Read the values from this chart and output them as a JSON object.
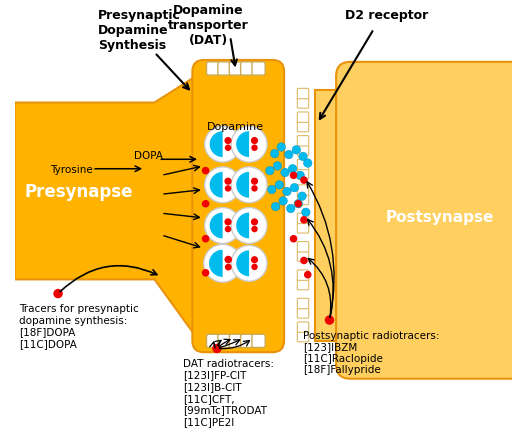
{
  "bg_color": "#ffffff",
  "orange_fill": "#FFB300",
  "orange_light": "#FFD060",
  "orange_edge": "#E8930A",
  "presynapse_label": "Presynapse",
  "postsynapse_label": "Postsynapse",
  "red_dot": "#EE0000",
  "blue_dot": "#00BBEE",
  "white": "#FFFFFF",
  "text_top_left": "Presynaptic\nDopamine\nSynthesis",
  "text_top_center": "Dopamine\ntransporter\n(DAT)",
  "text_top_right": "D2 receptor",
  "text_tyrosine": "Tyrosine",
  "text_dopa": "DOPA",
  "text_dopamine": "Dopamine",
  "text_pre_tracers": "Tracers for presynaptic\ndopamine synthesis:\n[18F]DOPA\n[11C]DOPA",
  "text_dat_tracers": "DAT radiotracers:\n[123I]FP-CIT\n[123I]B-CIT\n[11C]CFT,\n[99mTc]TRODAT\n[11C]PE2I",
  "text_post_tracers": "Postsynaptic radiotracers:\n[123]IBZM\n[11C]Raclopide\n[18F]Fallypride"
}
